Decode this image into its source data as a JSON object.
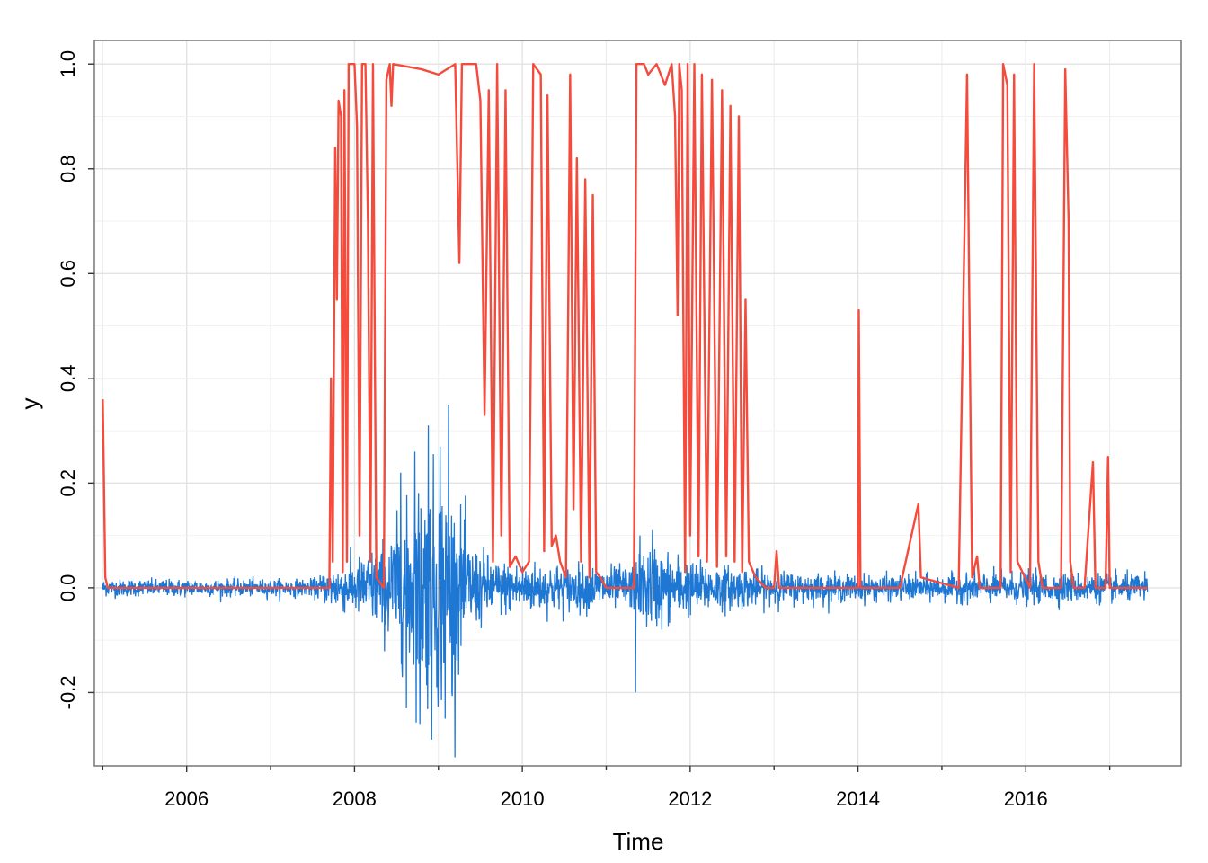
{
  "chart_data": {
    "type": "line",
    "title": "",
    "xlabel": "Time",
    "ylabel": "y",
    "xlim": [
      2004.9,
      2017.85
    ],
    "ylim": [
      -0.34,
      1.045
    ],
    "x_ticks": [
      2006,
      2008,
      2010,
      2012,
      2014,
      2016
    ],
    "x_tick_labels": [
      "2006",
      "2008",
      "2010",
      "2012",
      "2014",
      "2016"
    ],
    "x_minor_ticks": [
      2005,
      2007,
      2009,
      2011,
      2013,
      2015,
      2017
    ],
    "y_ticks": [
      -0.2,
      0.0,
      0.2,
      0.4,
      0.6,
      0.8,
      1.0
    ],
    "y_tick_labels": [
      "-0.2",
      "0.0",
      "0.2",
      "0.4",
      "0.6",
      "0.8",
      "1.0"
    ],
    "grid": true,
    "legend": "none",
    "series": [
      {
        "color": "#1f77d4",
        "style": "noisy-returns",
        "volatility_profile": [
          [
            2005.0,
            0.008
          ],
          [
            2007.5,
            0.008
          ],
          [
            2007.75,
            0.02
          ],
          [
            2008.0,
            0.025
          ],
          [
            2008.3,
            0.04
          ],
          [
            2008.6,
            0.07
          ],
          [
            2008.8,
            0.1
          ],
          [
            2009.0,
            0.11
          ],
          [
            2009.2,
            0.08
          ],
          [
            2009.4,
            0.04
          ],
          [
            2009.7,
            0.025
          ],
          [
            2010.5,
            0.022
          ],
          [
            2011.0,
            0.02
          ],
          [
            2011.3,
            0.02
          ],
          [
            2011.5,
            0.04
          ],
          [
            2011.7,
            0.035
          ],
          [
            2012.0,
            0.025
          ],
          [
            2012.5,
            0.02
          ],
          [
            2013.0,
            0.015
          ],
          [
            2014.0,
            0.012
          ],
          [
            2015.0,
            0.012
          ],
          [
            2016.0,
            0.015
          ],
          [
            2017.5,
            0.012
          ]
        ],
        "spikes": [
          [
            2008.55,
            0.22
          ],
          [
            2008.62,
            -0.23
          ],
          [
            2008.72,
            0.26
          ],
          [
            2008.78,
            -0.26
          ],
          [
            2008.88,
            0.31
          ],
          [
            2008.92,
            -0.29
          ],
          [
            2009.02,
            0.27
          ],
          [
            2009.08,
            -0.25
          ],
          [
            2009.12,
            0.35
          ],
          [
            2009.16,
            -0.2
          ],
          [
            2011.35,
            -0.2
          ],
          [
            2011.4,
            0.1
          ],
          [
            2011.55,
            0.11
          ]
        ]
      },
      {
        "color": "#f44b3c",
        "style": "regime-probability",
        "points": [
          [
            2005.0,
            0.36
          ],
          [
            2005.03,
            0.02
          ],
          [
            2005.06,
            0.0
          ],
          [
            2007.7,
            0.0
          ],
          [
            2007.72,
            0.4
          ],
          [
            2007.74,
            0.05
          ],
          [
            2007.77,
            0.84
          ],
          [
            2007.79,
            0.55
          ],
          [
            2007.81,
            0.93
          ],
          [
            2007.84,
            0.9
          ],
          [
            2007.86,
            0.03
          ],
          [
            2007.88,
            0.95
          ],
          [
            2007.91,
            0.05
          ],
          [
            2007.93,
            1.0
          ],
          [
            2008.0,
            1.0
          ],
          [
            2008.03,
            0.88
          ],
          [
            2008.06,
            0.1
          ],
          [
            2008.09,
            1.0
          ],
          [
            2008.13,
            1.0
          ],
          [
            2008.16,
            0.7
          ],
          [
            2008.19,
            0.05
          ],
          [
            2008.22,
            1.0
          ],
          [
            2008.26,
            0.02
          ],
          [
            2008.35,
            0.0
          ],
          [
            2008.38,
            0.97
          ],
          [
            2008.42,
            1.0
          ],
          [
            2008.44,
            0.92
          ],
          [
            2008.46,
            1.0
          ],
          [
            2008.8,
            0.99
          ],
          [
            2009.0,
            0.98
          ],
          [
            2009.2,
            1.0
          ],
          [
            2009.25,
            0.62
          ],
          [
            2009.28,
            1.0
          ],
          [
            2009.45,
            1.0
          ],
          [
            2009.5,
            0.93
          ],
          [
            2009.55,
            0.33
          ],
          [
            2009.6,
            0.95
          ],
          [
            2009.65,
            0.05
          ],
          [
            2009.7,
            1.0
          ],
          [
            2009.75,
            0.1
          ],
          [
            2009.8,
            0.95
          ],
          [
            2009.85,
            0.04
          ],
          [
            2009.92,
            0.06
          ],
          [
            2010.0,
            0.03
          ],
          [
            2010.08,
            0.05
          ],
          [
            2010.13,
            1.0
          ],
          [
            2010.22,
            0.98
          ],
          [
            2010.26,
            0.07
          ],
          [
            2010.3,
            0.94
          ],
          [
            2010.35,
            0.08
          ],
          [
            2010.4,
            0.1
          ],
          [
            2010.45,
            0.05
          ],
          [
            2010.52,
            0.02
          ],
          [
            2010.57,
            0.98
          ],
          [
            2010.61,
            0.15
          ],
          [
            2010.65,
            0.82
          ],
          [
            2010.7,
            0.05
          ],
          [
            2010.75,
            0.78
          ],
          [
            2010.8,
            0.02
          ],
          [
            2010.84,
            0.75
          ],
          [
            2010.88,
            0.03
          ],
          [
            2010.93,
            0.02
          ],
          [
            2011.0,
            0.0
          ],
          [
            2011.33,
            0.0
          ],
          [
            2011.36,
            1.0
          ],
          [
            2011.45,
            1.0
          ],
          [
            2011.5,
            0.98
          ],
          [
            2011.6,
            1.0
          ],
          [
            2011.7,
            0.96
          ],
          [
            2011.78,
            1.0
          ],
          [
            2011.82,
            0.9
          ],
          [
            2011.85,
            0.52
          ],
          [
            2011.87,
            1.0
          ],
          [
            2011.9,
            0.95
          ],
          [
            2011.94,
            0.03
          ],
          [
            2011.97,
            1.0
          ],
          [
            2012.0,
            0.1
          ],
          [
            2012.05,
            1.0
          ],
          [
            2012.1,
            0.06
          ],
          [
            2012.14,
            0.98
          ],
          [
            2012.2,
            0.05
          ],
          [
            2012.26,
            0.97
          ],
          [
            2012.32,
            0.04
          ],
          [
            2012.38,
            0.95
          ],
          [
            2012.43,
            0.06
          ],
          [
            2012.48,
            0.92
          ],
          [
            2012.53,
            0.05
          ],
          [
            2012.58,
            0.9
          ],
          [
            2012.62,
            0.03
          ],
          [
            2012.66,
            0.55
          ],
          [
            2012.7,
            0.05
          ],
          [
            2012.78,
            0.02
          ],
          [
            2012.9,
            0.0
          ],
          [
            2013.0,
            0.0
          ],
          [
            2013.03,
            0.07
          ],
          [
            2013.06,
            0.0
          ],
          [
            2014.0,
            0.0
          ],
          [
            2014.01,
            0.53
          ],
          [
            2014.03,
            0.0
          ],
          [
            2014.5,
            0.0
          ],
          [
            2014.72,
            0.16
          ],
          [
            2014.75,
            0.02
          ],
          [
            2015.2,
            0.0
          ],
          [
            2015.3,
            0.98
          ],
          [
            2015.36,
            0.02
          ],
          [
            2015.42,
            0.06
          ],
          [
            2015.45,
            0.0
          ],
          [
            2015.7,
            0.0
          ],
          [
            2015.73,
            1.0
          ],
          [
            2015.78,
            0.96
          ],
          [
            2015.82,
            0.03
          ],
          [
            2015.86,
            0.98
          ],
          [
            2015.9,
            0.05
          ],
          [
            2016.05,
            0.0
          ],
          [
            2016.1,
            1.0
          ],
          [
            2016.15,
            0.05
          ],
          [
            2016.2,
            0.0
          ],
          [
            2016.42,
            0.0
          ],
          [
            2016.47,
            0.99
          ],
          [
            2016.51,
            0.7
          ],
          [
            2016.53,
            0.05
          ],
          [
            2016.57,
            0.0
          ],
          [
            2016.7,
            0.0
          ],
          [
            2016.8,
            0.24
          ],
          [
            2016.83,
            0.0
          ],
          [
            2016.95,
            0.0
          ],
          [
            2016.98,
            0.25
          ],
          [
            2017.0,
            0.0
          ],
          [
            2017.45,
            0.0
          ]
        ]
      }
    ]
  }
}
